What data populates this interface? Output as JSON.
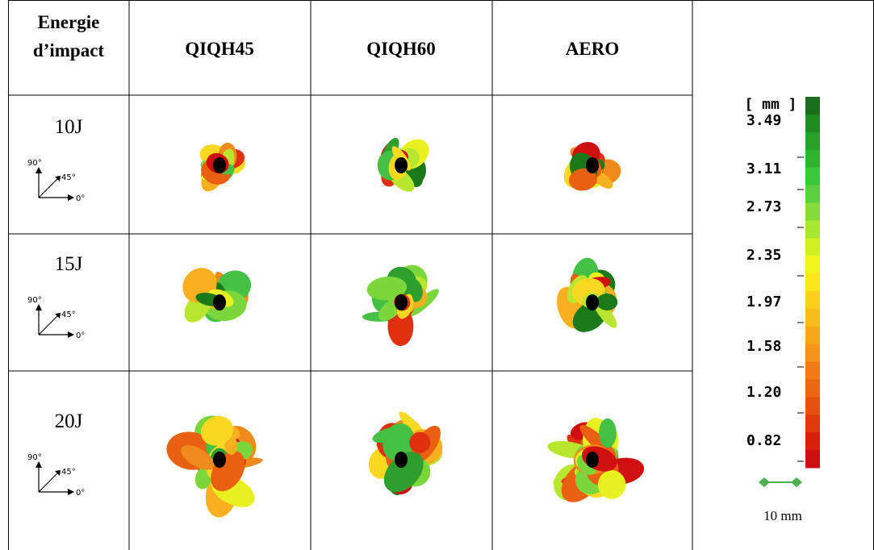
{
  "header": {
    "energy": [
      "Energie",
      "d’impact"
    ],
    "columns": [
      "QIQH45",
      "QIQH60",
      "AERO"
    ]
  },
  "rows": [
    {
      "energy": "10J",
      "axes": [
        "90°",
        "45°",
        "0°"
      ]
    },
    {
      "energy": "15J",
      "axes": [
        "90°",
        "45°",
        "0°"
      ]
    },
    {
      "energy": "20J",
      "axes": [
        "90°",
        "45°",
        "0°"
      ]
    }
  ],
  "colorbar": {
    "unit": "[ mm ]",
    "ticks": [
      "3.49",
      "3.11",
      "2.73",
      "2.35",
      "1.97",
      "1.58",
      "1.20",
      "0.82"
    ]
  },
  "scale_bar": "10 mm"
}
